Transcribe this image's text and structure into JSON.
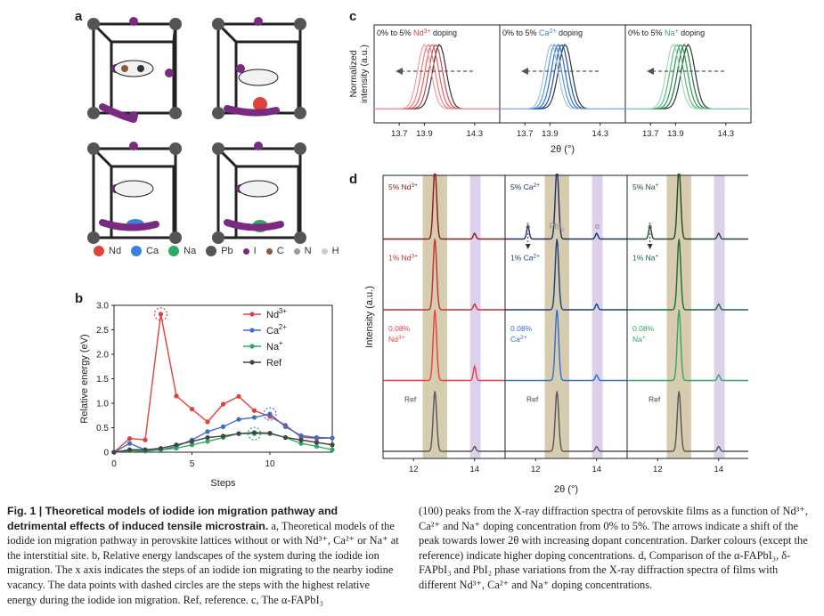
{
  "panels": {
    "a": {
      "label": "a",
      "legend": [
        {
          "label": "Nd",
          "color": "#e0423a"
        },
        {
          "label": "Ca",
          "color": "#3a7fd8"
        },
        {
          "label": "Na",
          "color": "#2fa862"
        },
        {
          "label": "Pb",
          "color": "#555555"
        },
        {
          "label": "I",
          "color": "#7b2a82"
        },
        {
          "label": "C",
          "color": "#8a5a3a"
        },
        {
          "label": "N",
          "color": "#9a9a9a"
        },
        {
          "label": "H",
          "color": "#cccccc"
        }
      ]
    },
    "b": {
      "label": "b"
    },
    "c": {
      "label": "c"
    },
    "d": {
      "label": "d"
    }
  },
  "chart_data": [
    {
      "id": "b",
      "type": "line",
      "xlabel": "Steps",
      "ylabel": "Relative energy (eV)",
      "xlim": [
        0,
        14
      ],
      "ylim": [
        0,
        3.0
      ],
      "xticks": [
        "0",
        "5",
        "10"
      ],
      "yticks": [
        "0",
        "0.5",
        "1.0",
        "1.5",
        "2.0",
        "2.5",
        "3.0"
      ],
      "x": [
        0,
        1,
        2,
        3,
        4,
        5,
        6,
        7,
        8,
        9,
        10,
        11,
        12,
        13,
        14
      ],
      "series": [
        {
          "name": "Nd",
          "sup": "3+",
          "color": "#e0423a",
          "values": [
            0,
            0.28,
            0.25,
            2.82,
            1.15,
            0.88,
            0.62,
            0.98,
            1.14,
            0.85,
            0.73,
            0.55,
            0.31,
            0.28,
            0.29
          ]
        },
        {
          "name": "Ca",
          "sup": "2+",
          "color": "#3a6fd0",
          "values": [
            0,
            0.18,
            0.05,
            0.05,
            0.12,
            0.25,
            0.42,
            0.52,
            0.67,
            0.71,
            0.78,
            0.52,
            0.34,
            0.3,
            0.29
          ]
        },
        {
          "name": "Na",
          "sup": "+",
          "color": "#2fa862",
          "values": [
            0,
            0.03,
            0.02,
            0.05,
            0.08,
            0.15,
            0.22,
            0.3,
            0.38,
            0.38,
            0.38,
            0.3,
            0.18,
            0.12,
            0.05
          ]
        },
        {
          "name": "Ref",
          "sup": "",
          "color": "#444444",
          "values": [
            0,
            0.05,
            0.05,
            0.08,
            0.15,
            0.22,
            0.3,
            0.33,
            0.38,
            0.4,
            0.39,
            0.3,
            0.25,
            0.2,
            0.15
          ]
        }
      ],
      "highlight": [
        {
          "series": "Nd",
          "x": 3
        },
        {
          "series": "Ca",
          "x": 10
        },
        {
          "series": "Na",
          "x": 9
        }
      ],
      "legend": "top-right"
    },
    {
      "id": "c",
      "type": "line",
      "ylabel_line1": "Normalized",
      "ylabel_line2": "intensity (a.u.)",
      "xlabel": "2θ (°)",
      "xlim": [
        13.5,
        14.5
      ],
      "xticks": [
        "13.7",
        "13.9",
        "14.3"
      ],
      "subpanels": [
        {
          "label_prefix": "0% to 5% ",
          "ion": "Nd",
          "sup": "3+",
          "label_suffix": " doping",
          "color": "#e0423a",
          "peak_ref": 14.02,
          "peak_shift": 13.9,
          "shades": [
            "#333333",
            "#c84a4a",
            "#e56060",
            "#e88080",
            "#f0a0a0"
          ]
        },
        {
          "label_prefix": "0% to 5% ",
          "ion": "Ca",
          "sup": "2+",
          "label_suffix": " doping",
          "color": "#3a7fd8",
          "peak_ref": 14.02,
          "peak_shift": 13.91,
          "shades": [
            "#333333",
            "#1a4fb0",
            "#2f6ed0",
            "#5a92e0",
            "#a0c0f0"
          ]
        },
        {
          "label_prefix": "0% to 5% ",
          "ion": "Na",
          "sup": "+",
          "label_suffix": " doping",
          "color": "#2fa862",
          "peak_ref": 14.0,
          "peak_shift": 13.88,
          "shades": [
            "#333333",
            "#1a7a40",
            "#2f9a58",
            "#5ab880",
            "#a0dcb8"
          ]
        }
      ]
    },
    {
      "id": "d",
      "type": "line",
      "ylabel": "Intensity (a.u.)",
      "xlabel": "2θ (°)",
      "xlim": [
        11,
        15
      ],
      "xticks": [
        "12",
        "14"
      ],
      "band_labels": {
        "delta": "δ",
        "pbi2": "PbI",
        "pbi2_sub": "2",
        "alpha": "α"
      },
      "columns": [
        {
          "ion": "Nd",
          "sup": "3+",
          "rows": [
            {
              "label": "5% Nd",
              "color": "#8a1a1a",
              "delta": 0
            },
            {
              "label": "1% Nd",
              "color": "#c23030",
              "delta": 0
            },
            {
              "label": "0.08% Nd",
              "color": "#e84040",
              "delta": 0
            },
            {
              "label": "Ref",
              "color": "#555555",
              "delta": 0
            }
          ]
        },
        {
          "ion": "Ca",
          "sup": "2+",
          "rows": [
            {
              "label": "5% Ca",
              "color": "#1a2f6a",
              "delta": 1
            },
            {
              "label": "1% Ca",
              "color": "#1a3f7a",
              "delta": 0
            },
            {
              "label": "0.08% Ca",
              "color": "#2f6ed0",
              "delta": 0
            },
            {
              "label": "Ref",
              "color": "#555555",
              "delta": 0
            }
          ]
        },
        {
          "ion": "Na",
          "sup": "+",
          "rows": [
            {
              "label": "5% Na",
              "color": "#1a4a2a",
              "delta": 1
            },
            {
              "label": "1% Na",
              "color": "#1a6a3a",
              "delta": 0
            },
            {
              "label": "0.08% Na",
              "color": "#2fa862",
              "delta": 0
            },
            {
              "label": "Ref",
              "color": "#555555",
              "delta": 0
            }
          ]
        }
      ]
    }
  ],
  "caption": {
    "left_bold": "Fig. 1 | Theoretical models of iodide ion migration pathway and detrimental effects of induced tensile microstrain.",
    "left_text": " a, Theoretical models of the iodide ion migration pathway in perovskite lattices without or with Nd³⁺, Ca²⁺ or Na⁺ at the interstitial site. b, Relative energy landscapes of the system during the iodide ion migration. The x axis indicates the steps of an iodide ion migrating to the nearby iodine vacancy. The data points with dashed circles are the steps with the highest relative energy during the iodide ion migration. Ref, reference. c, The α-FAPbI₃",
    "right_text": "(100) peaks from the X-ray diffraction spectra of perovskite films as a function of Nd³⁺, Ca²⁺ and Na⁺ doping concentration from 0% to 5%. The arrows indicate a shift of the peak towards lower 2θ with increasing dopant concentration. Darker colours (except the reference) indicate higher doping concentrations. d, Comparison of the α-FAPbI₃, δ-FAPbI₃ and PbI₂ phase variations from the X-ray diffraction spectra of films with different Nd³⁺, Ca²⁺ and Na⁺ doping concentrations."
  }
}
